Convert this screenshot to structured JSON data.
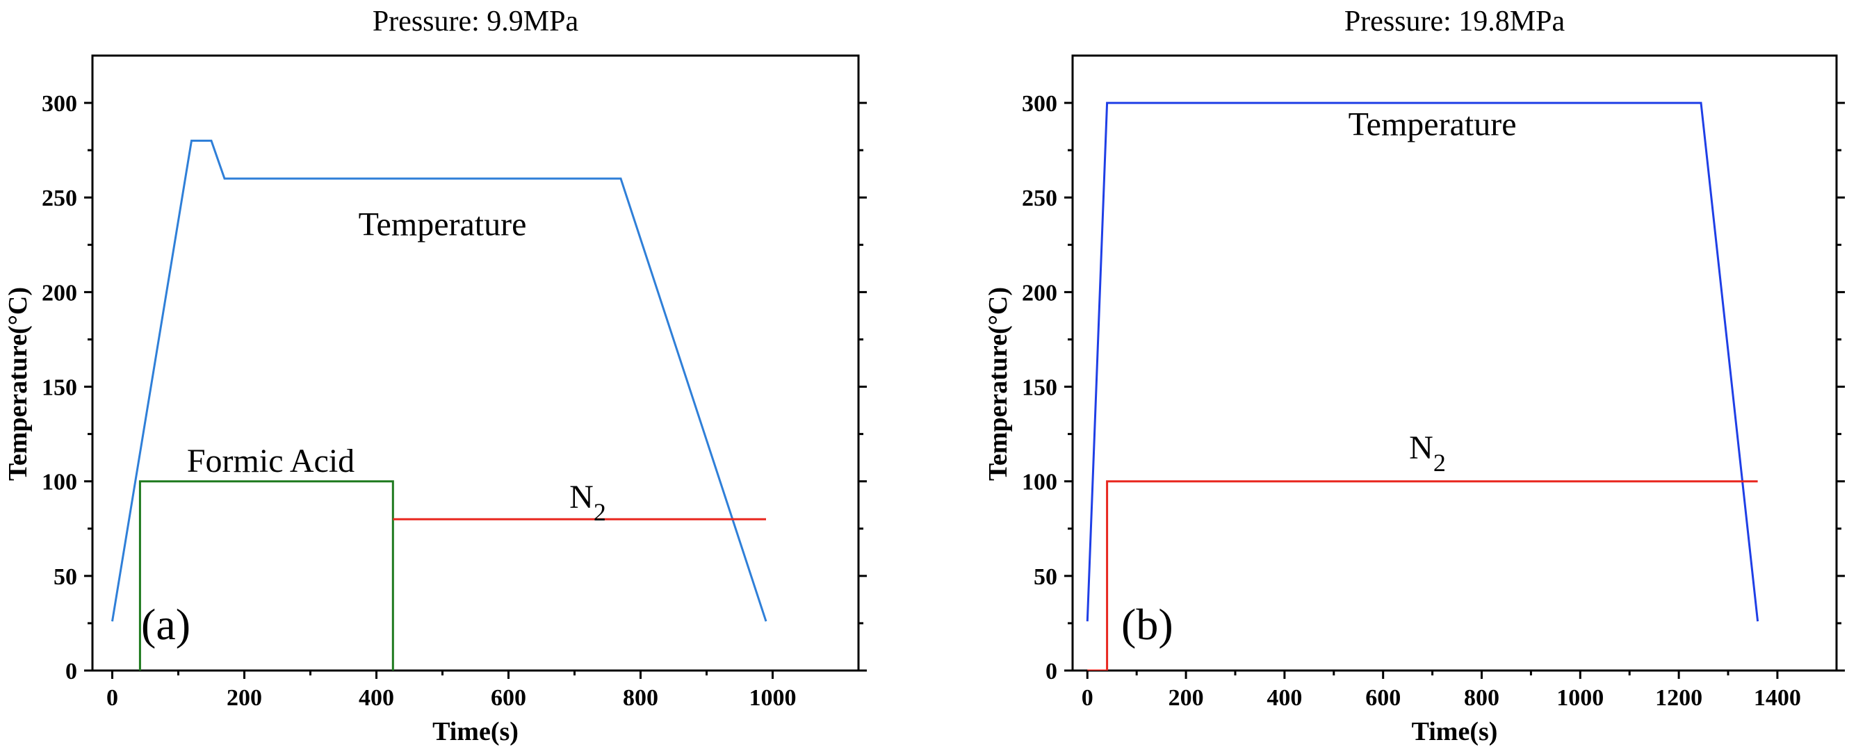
{
  "chart_data": [
    {
      "type": "line",
      "title": "Pressure: 9.9MPa",
      "xlabel": "Time(s)",
      "ylabel": "Temperature(°C)",
      "xlim": [
        -30,
        1130
      ],
      "ylim": [
        0,
        325
      ],
      "xticks": [
        0,
        200,
        400,
        600,
        800,
        1000
      ],
      "yticks": [
        0,
        50,
        100,
        150,
        200,
        250,
        300
      ],
      "panel_label": "(a)",
      "series": [
        {
          "name": "Temperature",
          "color": "#2f7fd8",
          "x": [
            0,
            120,
            150,
            170,
            770,
            990
          ],
          "y": [
            26,
            280,
            280,
            260,
            260,
            26
          ]
        },
        {
          "name": "Formic Acid",
          "color": "#1e7a1e",
          "x": [
            42,
            42,
            425,
            425
          ],
          "y": [
            0,
            100,
            100,
            0
          ]
        },
        {
          "name": "N2",
          "color": "#e8271f",
          "x": [
            425,
            990
          ],
          "y": [
            80,
            80
          ]
        }
      ],
      "annotations": [
        {
          "text": "Temperature",
          "x": 500,
          "y": 230
        },
        {
          "text": "Formic Acid",
          "x": 240,
          "y": 105
        },
        {
          "text": "N",
          "sub": "2",
          "x": 720,
          "y": 86
        }
      ]
    },
    {
      "type": "line",
      "title": "Pressure: 19.8MPa",
      "xlabel": "Time(s)",
      "ylabel": "Temperature(°C)",
      "xlim": [
        -30,
        1520
      ],
      "ylim": [
        0,
        325
      ],
      "xticks": [
        0,
        200,
        400,
        600,
        800,
        1000,
        1200,
        1400
      ],
      "yticks": [
        0,
        50,
        100,
        150,
        200,
        250,
        300
      ],
      "panel_label": "(b)",
      "series": [
        {
          "name": "Temperature",
          "color": "#1f3fe6",
          "x": [
            0,
            40,
            1245,
            1360
          ],
          "y": [
            26,
            300,
            300,
            26
          ]
        },
        {
          "name": "N2",
          "color": "#e8271f",
          "x": [
            0,
            40,
            40,
            1360
          ],
          "y": [
            0,
            0,
            100,
            100
          ]
        }
      ],
      "annotations": [
        {
          "text": "Temperature",
          "x": 700,
          "y": 283
        },
        {
          "text": "N",
          "sub": "2",
          "x": 690,
          "y": 112
        }
      ]
    }
  ]
}
